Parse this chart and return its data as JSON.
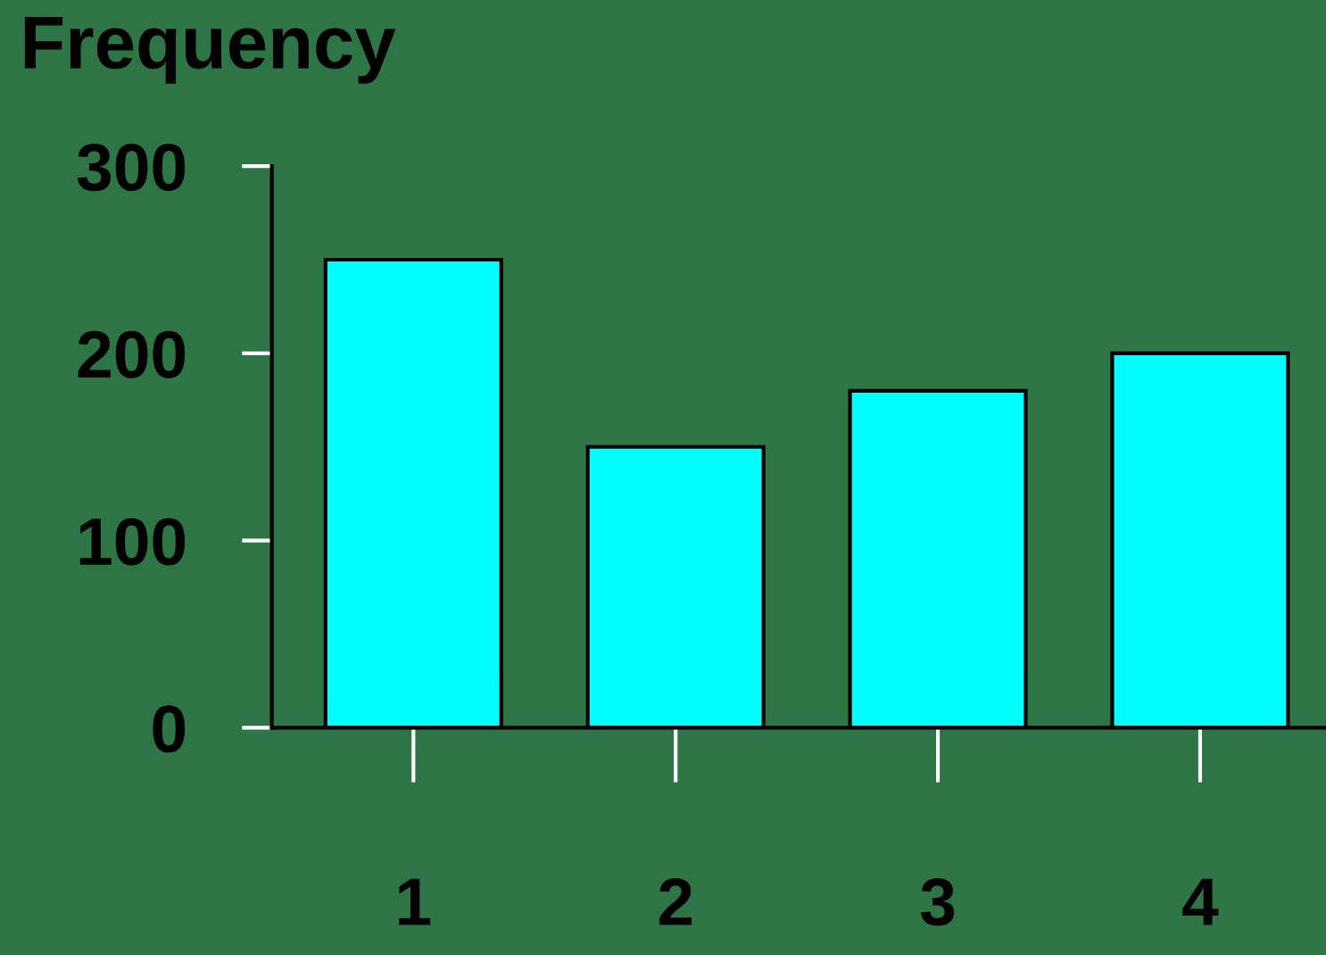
{
  "chart_data": {
    "type": "bar",
    "ylabel": "Frequency",
    "categories": [
      "1",
      "2",
      "3",
      "4"
    ],
    "series": [
      {
        "color": "#00ffff",
        "values": [
          250,
          150,
          180,
          200
        ]
      }
    ],
    "ylim": [
      0,
      300
    ],
    "yticks": [
      0,
      100,
      200,
      300
    ],
    "grid": false,
    "legend": false
  }
}
